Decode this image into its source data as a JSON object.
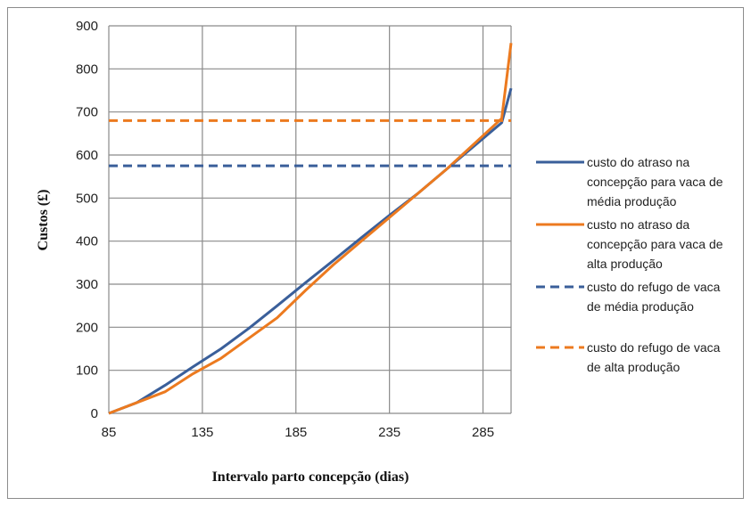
{
  "chart_data": {
    "type": "line",
    "title": "",
    "xlabel": "Intervalo parto concepção (dias)",
    "ylabel": "Custos (£)",
    "xlim": [
      85,
      300
    ],
    "ylim": [
      0,
      900
    ],
    "x_ticks": [
      85,
      135,
      185,
      235,
      285
    ],
    "y_ticks": [
      0,
      100,
      200,
      300,
      400,
      500,
      600,
      700,
      800,
      900
    ],
    "grid": true,
    "legend_position": "right",
    "series": [
      {
        "name": "custo do atraso na concepção para vaca de média produção",
        "style": "solid",
        "color": "#3a5f9a",
        "x": [
          85,
          100,
          115,
          130,
          145,
          160,
          175,
          190,
          205,
          220,
          235,
          250,
          265,
          280,
          295,
          300
        ],
        "y": [
          0,
          25,
          65,
          108,
          150,
          198,
          250,
          303,
          355,
          408,
          460,
          510,
          565,
          620,
          675,
          755
        ]
      },
      {
        "name": "custo no atraso da concepção para vaca de alta produção",
        "style": "solid",
        "color": "#ec7a1f",
        "x": [
          85,
          100,
          115,
          130,
          145,
          160,
          175,
          190,
          205,
          220,
          235,
          250,
          265,
          280,
          295,
          300
        ],
        "y": [
          0,
          25,
          50,
          92,
          128,
          175,
          222,
          285,
          345,
          400,
          455,
          510,
          565,
          625,
          685,
          860
        ]
      },
      {
        "name": "custo do refugo de vaca de média produção",
        "style": "dashed",
        "color": "#3a5f9a",
        "x": [
          85,
          300
        ],
        "y": [
          575,
          575
        ]
      },
      {
        "name": "custo do refugo de vaca de alta produção",
        "style": "dashed",
        "color": "#ec7a1f",
        "x": [
          85,
          300
        ],
        "y": [
          680,
          680
        ]
      }
    ],
    "legend_lines": [
      [
        "custo do atraso na",
        "concepção para vaca de",
        "média produção"
      ],
      [
        "custo no atraso da",
        "concepção para vaca de",
        "alta produção"
      ],
      [
        "custo do refugo de vaca",
        "de média produção"
      ],
      [
        "custo do refugo de vaca",
        "de alta produção"
      ]
    ]
  }
}
